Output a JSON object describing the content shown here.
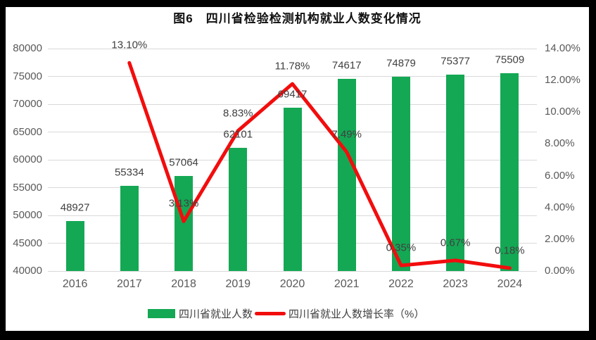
{
  "title": "图6　四川省检验检测机构就业人数变化情况",
  "chart_data": {
    "type": "bar+line",
    "title": "图6　四川省检验检测机构就业人数变化情况",
    "categories": [
      "2016",
      "2017",
      "2018",
      "2019",
      "2020",
      "2021",
      "2022",
      "2023",
      "2024"
    ],
    "series": [
      {
        "name": "四川省就业人数",
        "type": "bar",
        "axis": "left",
        "color": "#14a854",
        "values": [
          48927,
          55334,
          57064,
          62101,
          69417,
          74617,
          74879,
          75377,
          75509
        ],
        "point_labels": [
          "48927",
          "55334",
          "57064",
          "62101",
          "69417",
          "74617",
          "74879",
          "75377",
          "75509"
        ]
      },
      {
        "name": "四川省就业人数增长率（%）",
        "type": "line",
        "axis": "right",
        "color": "#f20d0d",
        "values": [
          null,
          13.1,
          3.13,
          8.83,
          11.78,
          7.49,
          0.35,
          0.67,
          0.18
        ],
        "point_labels": [
          "",
          "13.10%",
          "3.13%",
          "8.83%",
          "11.78%",
          "7.49%",
          "0.35%",
          "0.67%",
          "0.18%"
        ]
      }
    ],
    "left_axis": {
      "min": 40000,
      "max": 80000,
      "step": 5000,
      "tick_labels": [
        "40000",
        "45000",
        "50000",
        "55000",
        "60000",
        "65000",
        "70000",
        "75000",
        "80000"
      ]
    },
    "right_axis": {
      "min": 0,
      "max": 14,
      "step": 2,
      "tick_labels": [
        "0.00%",
        "2.00%",
        "4.00%",
        "6.00%",
        "8.00%",
        "10.00%",
        "12.00%",
        "14.00%"
      ]
    },
    "grid": true,
    "legend_position": "bottom"
  },
  "colors": {
    "bar": "#14a854",
    "line": "#f20d0d",
    "grid": "#d9d9d9",
    "axis_text": "#595959",
    "data_label_text": "#404040",
    "background": "#ffffff",
    "frame": "#000000"
  }
}
